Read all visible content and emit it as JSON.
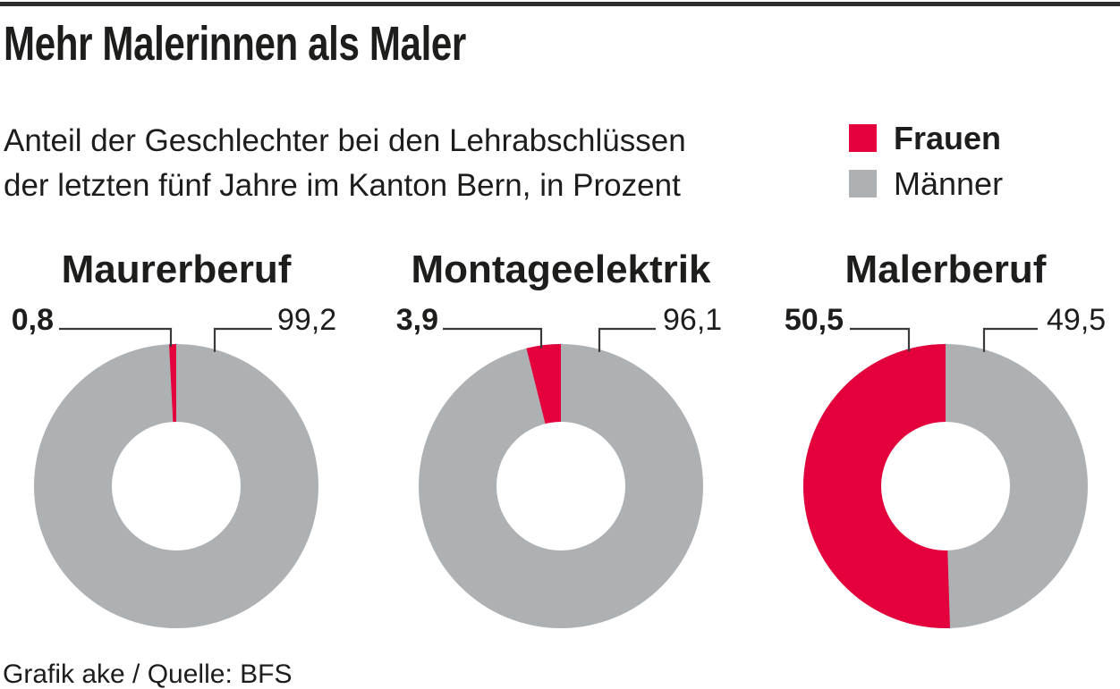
{
  "header": {
    "title": "Mehr Malerinnen als Maler",
    "subtitle_line1": "Anteil der Geschlechter bei den Lehrabschlüssen",
    "subtitle_line2": "der letzten fünf Jahre im Kanton Bern, in Prozent"
  },
  "chart_data": {
    "type": "pie",
    "variant": "donut",
    "unit": "percent",
    "legend_position": "top-right",
    "legend": [
      {
        "name": "Frauen",
        "color": "#e3003c"
      },
      {
        "name": "Männer",
        "color": "#aeb1b4"
      }
    ],
    "charts": [
      {
        "title": "Maurerberuf",
        "series": [
          {
            "name": "Frauen",
            "value": 0.8,
            "label": "0,8"
          },
          {
            "name": "Männer",
            "value": 99.2,
            "label": "99,2"
          }
        ]
      },
      {
        "title": "Montageelektrik",
        "series": [
          {
            "name": "Frauen",
            "value": 3.9,
            "label": "3,9"
          },
          {
            "name": "Männer",
            "value": 96.1,
            "label": "96,1"
          }
        ]
      },
      {
        "title": "Malerberuf",
        "series": [
          {
            "name": "Frauen",
            "value": 50.5,
            "label": "50,5"
          },
          {
            "name": "Männer",
            "value": 49.5,
            "label": "49,5"
          }
        ]
      }
    ]
  },
  "footer": {
    "credit": "Grafik ake / Quelle: BFS"
  }
}
